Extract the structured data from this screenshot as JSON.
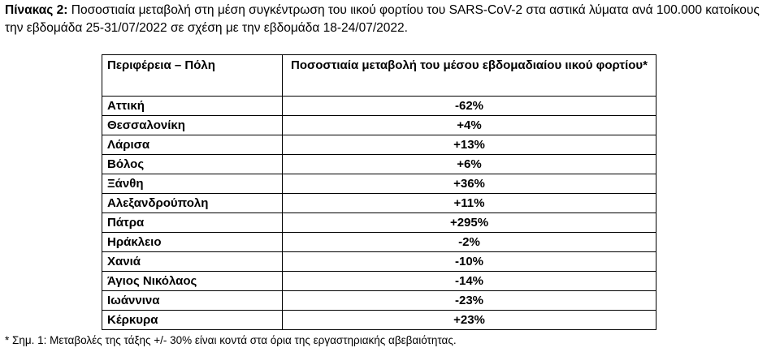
{
  "caption": {
    "label": "Πίνακας 2:",
    "text": " Ποσοστιαία μεταβολή στη μέση συγκέντρωση του ιικού φορτίου του SARS-CoV-2 στα αστικά λύματα ανά 100.000 κατοίκους την εβδομάδα 25-31/07/2022 σε σχέση με την εβδομάδα 18-24/07/2022."
  },
  "table": {
    "headers": [
      "Περιφέρεια – Πόλη",
      "Ποσοστιαία μεταβολή του μέσου εβδομαδιαίου ιικού φορτίου*"
    ],
    "rows": [
      {
        "city": "Αττική",
        "change": "-62%"
      },
      {
        "city": "Θεσσαλονίκη",
        "change": "+4%"
      },
      {
        "city": "Λάρισα",
        "change": "+13%"
      },
      {
        "city": "Βόλος",
        "change": "+6%"
      },
      {
        "city": "Ξάνθη",
        "change": "+36%"
      },
      {
        "city": "Αλεξανδρούπολη",
        "change": "+11%"
      },
      {
        "city": "Πάτρα",
        "change": "+295%"
      },
      {
        "city": "Ηράκλειο",
        "change": "-2%"
      },
      {
        "city": "Χανιά",
        "change": "-10%"
      },
      {
        "city": "Άγιος Νικόλαος",
        "change": "-14%"
      },
      {
        "city": "Ιωάννινα",
        "change": "-23%"
      },
      {
        "city": "Κέρκυρα",
        "change": "+23%"
      }
    ]
  },
  "footnote": "* Σημ. 1: Μεταβολές της τάξης +/- 30% είναι κοντά στα όρια της εργαστηριακής αβεβαιότητας."
}
